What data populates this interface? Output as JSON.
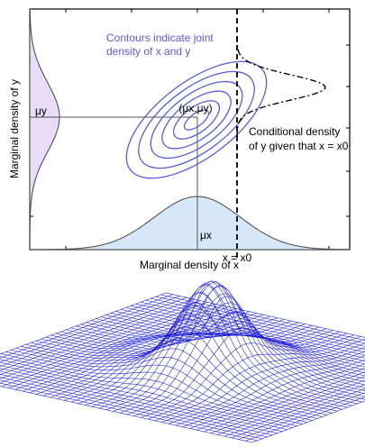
{
  "colors": {
    "contour": "#5a5adf",
    "marginal_y_fill": "#e8dcf8",
    "marginal_x_fill": "#d6e8f8",
    "mesh": "#1a1ad6",
    "frame": "#000000",
    "guide": "#555555"
  },
  "figure": {
    "contour_caption_line1": "Contours indicate joint",
    "contour_caption_line2": "density of x and y",
    "mean_label": "(μx,μy)",
    "mu_y_label": "μy",
    "mu_x_label": "μx",
    "cond_line1": "Conditional density",
    "cond_line2": "of y given that  x = x0",
    "x_axis_label": "Marginal density of x",
    "y_axis_label": "Marginal density of y",
    "x0_label": "x = x0"
  },
  "surface": {
    "name": "3D bivariate density surface plot"
  }
}
